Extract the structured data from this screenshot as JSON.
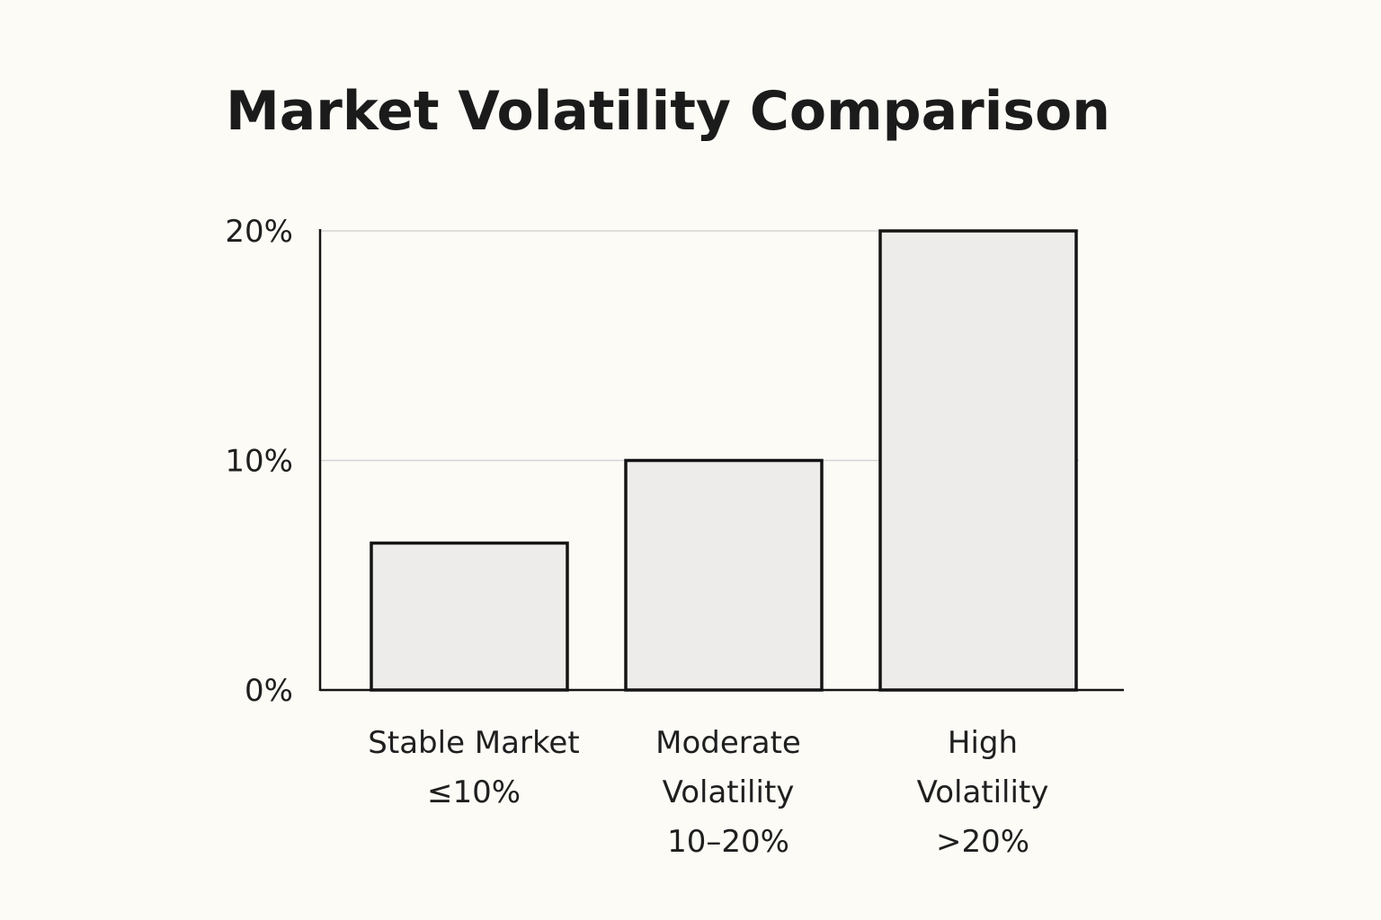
{
  "chart_data": {
    "type": "bar",
    "title": "Market Volatility Comparison",
    "xlabel": "",
    "ylabel": "",
    "categories": [
      [
        "Stable Market",
        "≤10%"
      ],
      [
        "Moderate",
        "Volatility",
        "10–20%"
      ],
      [
        "High",
        "Volatility",
        ">20%"
      ]
    ],
    "values": [
      6.4,
      10,
      20
    ],
    "ylim": [
      0,
      20
    ],
    "yticks": [
      0,
      10,
      20
    ],
    "ytick_labels": [
      "0%",
      "10%",
      "20%"
    ],
    "grid": true,
    "legend": "none",
    "colors": {
      "bar_fill": "#edecea",
      "bar_stroke": "#141414",
      "grid": "#d4d4d4",
      "axis": "#141414",
      "background": "#fcfbf6"
    }
  }
}
